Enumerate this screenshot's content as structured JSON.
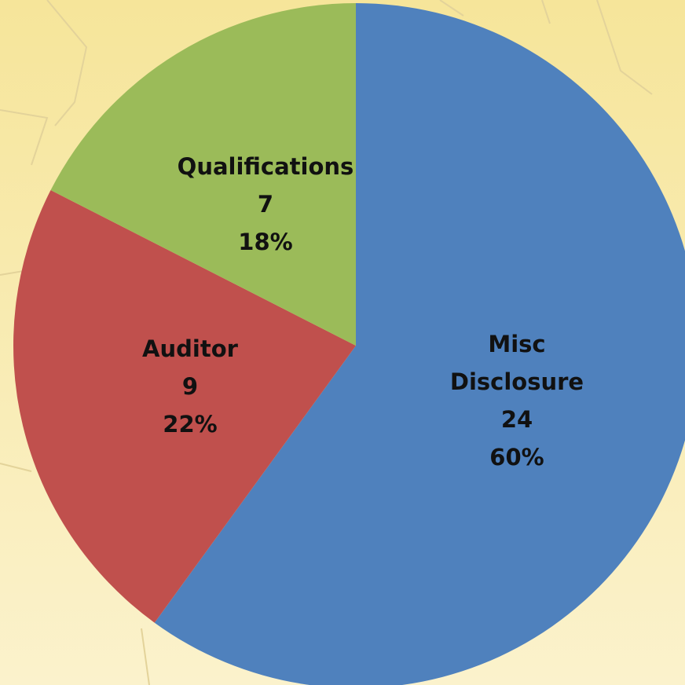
{
  "chart_data": {
    "type": "pie",
    "categories": [
      "Misc Disclosure",
      "Auditor",
      "Qualifications"
    ],
    "values": [
      24,
      9,
      7
    ],
    "percent_labels": [
      "60%",
      "22%",
      "18%"
    ],
    "colors": [
      "#4f81bd",
      "#c0504d",
      "#9bbb59"
    ]
  }
}
